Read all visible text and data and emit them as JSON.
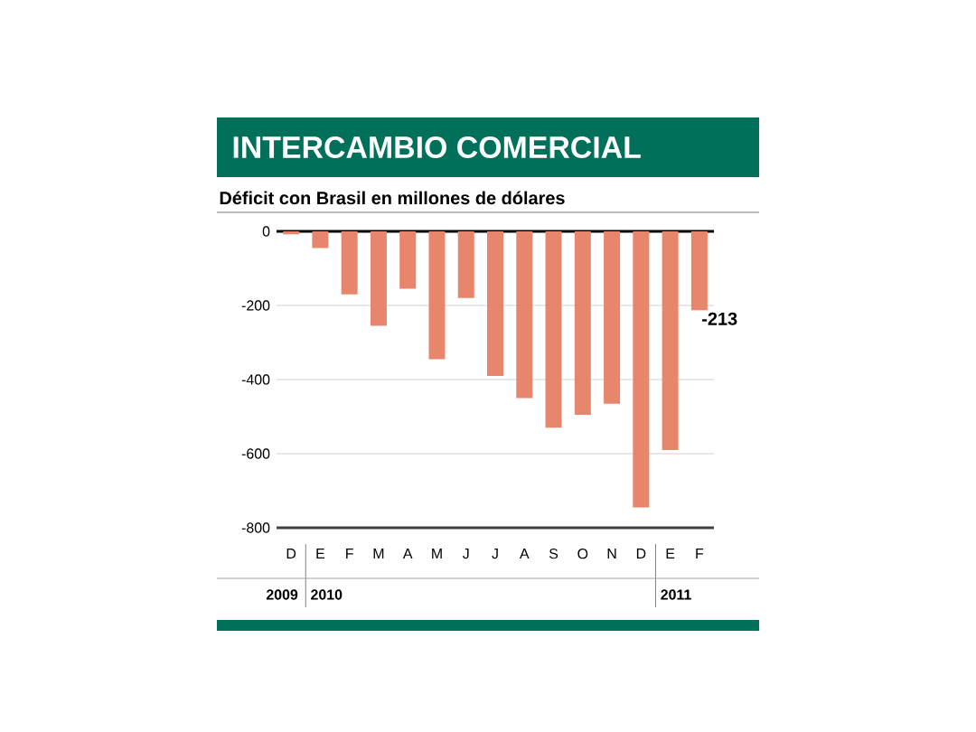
{
  "chart_data": {
    "type": "bar",
    "title": "INTERCAMBIO COMERCIAL",
    "subtitle": "Déficit con Brasil en millones de dólares",
    "categories": [
      "D",
      "E",
      "F",
      "M",
      "A",
      "M",
      "J",
      "J",
      "A",
      "S",
      "O",
      "N",
      "D",
      "E",
      "F"
    ],
    "values": [
      -8,
      -45,
      -170,
      -255,
      -155,
      -345,
      -180,
      -390,
      -450,
      -530,
      -495,
      -465,
      -745,
      -590,
      -213
    ],
    "value_labels": [
      null,
      null,
      null,
      null,
      null,
      null,
      null,
      null,
      null,
      null,
      null,
      null,
      null,
      null,
      "-213"
    ],
    "color": "#e8866c",
    "ylim": [
      -800,
      0
    ],
    "yticks": [
      -800,
      -600,
      -400,
      -200,
      0
    ],
    "grid": "y",
    "annotations": [
      "2009",
      "2010",
      "2011"
    ]
  }
}
